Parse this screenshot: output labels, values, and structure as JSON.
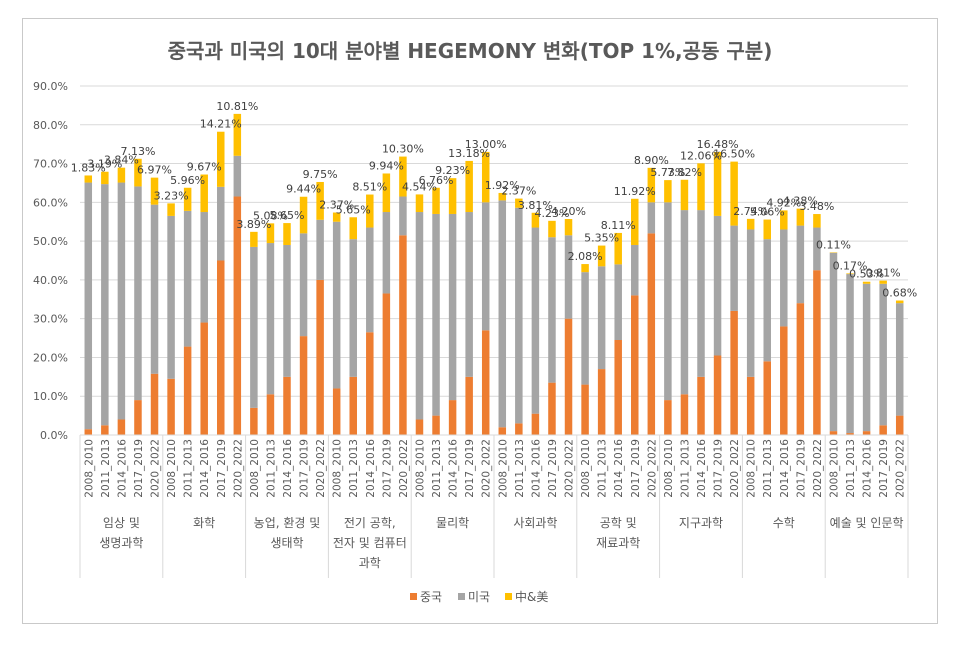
{
  "chart_data": {
    "type": "bar",
    "stacked": true,
    "title": "중국과 미국의 10대 분야별 HEGEMONY 변화(TOP 1%,공동 구분)",
    "ylim": [
      0,
      90
    ],
    "yticks": [
      "0.0%",
      "10.0%",
      "20.0%",
      "30.0%",
      "40.0%",
      "50.0%",
      "60.0%",
      "70.0%",
      "80.0%",
      "90.0%"
    ],
    "grid": true,
    "legend_position": "bottom",
    "periods": [
      "2008_2010",
      "2011_2013",
      "2014_2016",
      "2017_2019",
      "2020_2022"
    ],
    "series": [
      {
        "name": "중국",
        "color": "#ED7D31"
      },
      {
        "name": "미국",
        "color": "#A5A5A5"
      },
      {
        "name": "中&美",
        "color": "#FFC000"
      }
    ],
    "groups": [
      {
        "label_lines": [
          "임상 및",
          "생명과학"
        ],
        "china": [
          1.5,
          2.5,
          4.0,
          9.0,
          15.8
        ],
        "usa": [
          63.6,
          62.2,
          61.1,
          55.1,
          43.6
        ],
        "both": [
          1.83,
          3.19,
          3.84,
          7.13,
          6.97
        ],
        "labels": [
          "1.83%",
          "3.19%",
          "3.84%",
          "7.13%",
          "6.97%"
        ]
      },
      {
        "label_lines": [
          "화학"
        ],
        "china": [
          14.5,
          22.8,
          29.0,
          45.0,
          61.5
        ],
        "usa": [
          42.0,
          35.0,
          28.5,
          19.0,
          10.5
        ],
        "both": [
          3.23,
          5.96,
          9.67,
          14.21,
          10.81
        ],
        "labels": [
          "3.23%",
          "5.96%",
          "9.67%",
          "14.21%",
          "10.81%"
        ]
      },
      {
        "label_lines": [
          "농업, 환경 및",
          "생태학"
        ],
        "china": [
          7.0,
          10.5,
          15.0,
          25.5,
          40.0
        ],
        "usa": [
          41.5,
          39.0,
          34.0,
          26.5,
          15.5
        ],
        "both": [
          3.89,
          5.08,
          5.65,
          9.44,
          9.75
        ],
        "labels": [
          "3.89%",
          "5.08%",
          "5.65%",
          "9.44%",
          "9.75%"
        ]
      },
      {
        "label_lines": [
          "전기 공학,",
          "전자 및 컴퓨터",
          "과학"
        ],
        "china": [
          12.0,
          15.0,
          26.5,
          36.5,
          51.5
        ],
        "usa": [
          43.0,
          35.5,
          27.0,
          21.0,
          10.0
        ],
        "both": [
          2.37,
          5.65,
          8.51,
          9.94,
          10.3
        ],
        "labels": [
          "2.37%",
          "5.65%",
          "8.51%",
          "9.94%",
          "10.30%"
        ]
      },
      {
        "label_lines": [
          "물리학"
        ],
        "china": [
          4.0,
          5.0,
          9.0,
          15.0,
          27.0
        ],
        "usa": [
          53.5,
          52.0,
          48.0,
          42.5,
          33.0
        ],
        "both": [
          4.54,
          6.76,
          9.23,
          13.18,
          13.0
        ],
        "labels": [
          "4.54%",
          "6.76%",
          "9.23%",
          "13.18%",
          "13.00%"
        ]
      },
      {
        "label_lines": [
          "사회과학"
        ],
        "china": [
          2.0,
          3.0,
          5.5,
          13.5,
          30.0
        ],
        "usa": [
          58.5,
          55.6,
          48.0,
          37.5,
          21.5
        ],
        "both": [
          1.92,
          2.37,
          3.81,
          4.23,
          4.2
        ],
        "labels": [
          "1.92%",
          "2.37%",
          "3.81%",
          "4.23%",
          "4.20%"
        ]
      },
      {
        "label_lines": [
          "공학 및",
          "재료과학"
        ],
        "china": [
          13.0,
          17.0,
          24.5,
          36.0,
          52.0
        ],
        "usa": [
          29.0,
          26.5,
          19.5,
          13.0,
          8.0
        ],
        "both": [
          2.08,
          5.35,
          8.11,
          11.92,
          8.9
        ],
        "labels": [
          "2.08%",
          "5.35%",
          "8.11%",
          "11.92%",
          "8.90%"
        ]
      },
      {
        "label_lines": [
          "지구과학"
        ],
        "china": [
          9.0,
          10.5,
          15.0,
          20.5,
          32.0
        ],
        "usa": [
          51.0,
          47.5,
          43.0,
          36.0,
          22.0
        ],
        "both": [
          5.73,
          7.82,
          12.06,
          16.48,
          16.5
        ],
        "labels": [
          "5.73%",
          "7.82%",
          "12.06%",
          "16.48%",
          "16.50%"
        ]
      },
      {
        "label_lines": [
          "수학"
        ],
        "china": [
          15.0,
          19.0,
          28.0,
          34.0,
          42.5
        ],
        "usa": [
          38.0,
          31.5,
          25.0,
          20.0,
          11.0
        ],
        "both": [
          2.74,
          5.06,
          4.92,
          4.38,
          3.48
        ],
        "labels": [
          "2.74%",
          "5.06%",
          "4.92%",
          "4.38%",
          "3.48%"
        ]
      },
      {
        "label_lines": [
          "예술 및 인문학"
        ],
        "china": [
          1.0,
          0.5,
          1.0,
          2.5,
          5.0
        ],
        "usa": [
          46.0,
          41.0,
          38.0,
          36.5,
          29.0
        ],
        "both": [
          0.11,
          0.17,
          0.53,
          0.81,
          0.68
        ],
        "labels": [
          "0.11%",
          "0.17%",
          "0.53%",
          "0.81%",
          "0.68%"
        ]
      }
    ]
  }
}
